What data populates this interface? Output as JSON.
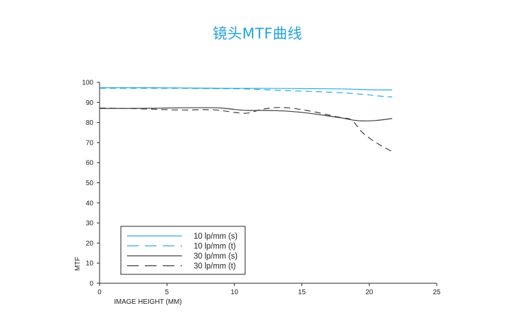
{
  "title": "镜头MTF曲线",
  "colors": {
    "title": "#21a3dc",
    "sagittal_10": "#2aa9e0",
    "tangential_10": "#2aa9e0",
    "sagittal_30": "#3a3a3a",
    "tangential_30": "#3a3a3a",
    "axis": "#222222"
  },
  "chart_data": {
    "type": "line",
    "title": "镜头MTF曲线",
    "xlabel": "IMAGE HEIGHT (MM)",
    "ylabel": "MTF",
    "xlim": [
      0,
      25
    ],
    "ylim": [
      0,
      100
    ],
    "xticks": [
      0,
      5,
      10,
      15,
      20,
      25
    ],
    "yticks": [
      0,
      10,
      20,
      30,
      40,
      50,
      60,
      70,
      80,
      90,
      100
    ],
    "grid": false,
    "legend_position": "bottom-left",
    "series": [
      {
        "name": "10 lp/mm (s)",
        "style": "solid",
        "color": "#2aa9e0",
        "x": [
          0,
          2,
          4,
          6,
          8,
          10,
          12,
          14,
          16,
          18,
          19,
          20,
          21,
          21.7
        ],
        "y": [
          97.3,
          97.3,
          97.3,
          97.2,
          97.1,
          97.0,
          97.0,
          96.9,
          96.8,
          96.7,
          96.5,
          96.3,
          96.2,
          96.2
        ]
      },
      {
        "name": "10 lp/mm (t)",
        "style": "dashed",
        "color": "#2aa9e0",
        "x": [
          0,
          2,
          4,
          6,
          8,
          10,
          12,
          14,
          16,
          18,
          19,
          20,
          21,
          21.7
        ],
        "y": [
          97.0,
          97.0,
          97.0,
          97.0,
          96.9,
          96.8,
          96.4,
          95.8,
          95.4,
          94.8,
          94.3,
          93.7,
          93.0,
          92.7
        ]
      },
      {
        "name": "30 lp/mm (s)",
        "style": "solid",
        "color": "#3a3a3a",
        "x": [
          0,
          2,
          4,
          6,
          8,
          9,
          10,
          11,
          12,
          13,
          14,
          15,
          16,
          17,
          18,
          18.7,
          19.5,
          20.5,
          21.7
        ],
        "y": [
          87.0,
          87.0,
          87.1,
          87.3,
          87.4,
          87.2,
          86.5,
          86.0,
          86.0,
          85.9,
          85.6,
          85.0,
          84.2,
          83.2,
          82.2,
          81.3,
          80.8,
          81.0,
          82.0
        ]
      },
      {
        "name": "30 lp/mm (t)",
        "style": "dashed",
        "color": "#3a3a3a",
        "x": [
          0,
          2,
          4,
          6,
          8,
          9,
          10,
          11,
          12,
          13,
          14,
          15,
          16,
          17,
          18,
          18.7,
          19.5,
          20.5,
          21.7
        ],
        "y": [
          87.2,
          87.0,
          86.6,
          86.2,
          86.4,
          86.0,
          85.0,
          84.7,
          86.5,
          87.4,
          87.3,
          86.4,
          85.2,
          83.7,
          82.3,
          81.2,
          75.0,
          70.0,
          65.5
        ]
      }
    ]
  }
}
